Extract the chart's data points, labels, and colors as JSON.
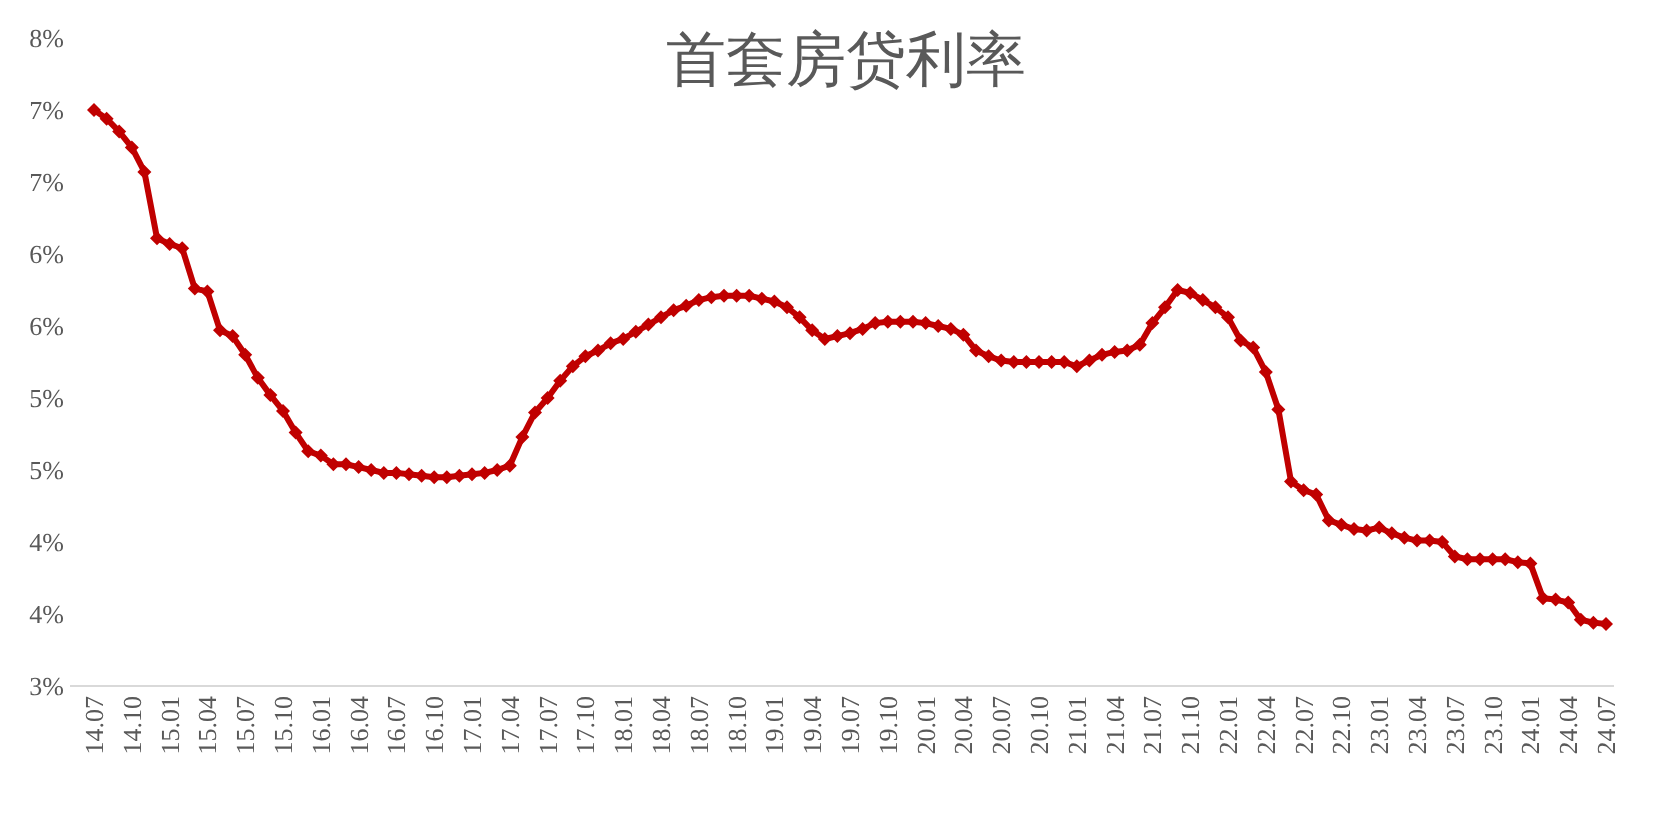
{
  "chart_data": {
    "type": "line",
    "title": "首套房贷利率",
    "categories": [
      "14.07",
      null,
      null,
      "14.10",
      null,
      null,
      "15.01",
      null,
      null,
      "15.04",
      null,
      null,
      "15.07",
      null,
      null,
      "15.10",
      null,
      null,
      "16.01",
      null,
      null,
      "16.04",
      null,
      null,
      "16.07",
      null,
      null,
      "16.10",
      null,
      null,
      "17.01",
      null,
      null,
      "17.04",
      null,
      null,
      "17.07",
      null,
      null,
      "17.10",
      null,
      null,
      "18.01",
      null,
      null,
      "18.04",
      null,
      null,
      "18.07",
      null,
      null,
      "18.10",
      null,
      null,
      "19.01",
      null,
      null,
      "19.04",
      null,
      null,
      "19.07",
      null,
      null,
      "19.10",
      null,
      null,
      "20.01",
      null,
      null,
      "20.04",
      null,
      null,
      "20.07",
      null,
      null,
      "20.10",
      null,
      null,
      "21.01",
      null,
      null,
      "21.04",
      null,
      null,
      "21.07",
      null,
      null,
      "21.10",
      null,
      null,
      "22.01",
      null,
      null,
      "22.04",
      null,
      null,
      "22.07",
      null,
      null,
      "22.10",
      null,
      null,
      "23.01",
      null,
      null,
      "23.04",
      null,
      null,
      "23.07",
      null,
      null,
      "23.10",
      null,
      null,
      "24.01",
      null,
      null,
      "24.04",
      null,
      null,
      "24.07"
    ],
    "values": [
      7.0,
      6.94,
      6.85,
      6.74,
      6.57,
      6.11,
      6.07,
      6.04,
      5.76,
      5.74,
      5.47,
      5.43,
      5.3,
      5.14,
      5.02,
      4.91,
      4.76,
      4.63,
      4.6,
      4.54,
      4.54,
      4.52,
      4.5,
      4.48,
      4.48,
      4.47,
      4.46,
      4.45,
      4.45,
      4.46,
      4.47,
      4.48,
      4.5,
      4.53,
      4.73,
      4.9,
      5.0,
      5.12,
      5.22,
      5.29,
      5.33,
      5.38,
      5.41,
      5.46,
      5.51,
      5.56,
      5.61,
      5.64,
      5.68,
      5.7,
      5.71,
      5.71,
      5.71,
      5.69,
      5.67,
      5.63,
      5.56,
      5.47,
      5.41,
      5.43,
      5.45,
      5.48,
      5.52,
      5.53,
      5.53,
      5.53,
      5.52,
      5.5,
      5.48,
      5.44,
      5.33,
      5.29,
      5.26,
      5.25,
      5.25,
      5.25,
      5.25,
      5.25,
      5.22,
      5.26,
      5.3,
      5.32,
      5.33,
      5.37,
      5.52,
      5.63,
      5.75,
      5.73,
      5.68,
      5.63,
      5.56,
      5.4,
      5.35,
      5.18,
      4.92,
      4.42,
      4.36,
      4.33,
      4.15,
      4.12,
      4.09,
      4.08,
      4.1,
      4.06,
      4.03,
      4.01,
      4.01,
      4.0,
      3.9,
      3.88,
      3.88,
      3.88,
      3.88,
      3.86,
      3.85,
      3.61,
      3.6,
      3.58,
      3.46,
      3.44,
      3.43
    ],
    "color": "#c00000",
    "marker": "diamond",
    "line_style": "solid",
    "ylim": [
      3,
      7.5
    ],
    "yticks": [
      {
        "value": 3,
        "label": "3%"
      },
      {
        "value": 3.5,
        "label": "4%"
      },
      {
        "value": 4,
        "label": "4%"
      },
      {
        "value": 4.5,
        "label": "5%"
      },
      {
        "value": 5,
        "label": "5%"
      },
      {
        "value": 5.5,
        "label": "6%"
      },
      {
        "value": 6,
        "label": "6%"
      },
      {
        "value": 6.5,
        "label": "7%"
      },
      {
        "value": 7,
        "label": "7%"
      },
      {
        "value": 7.5,
        "label": "8%"
      }
    ]
  }
}
